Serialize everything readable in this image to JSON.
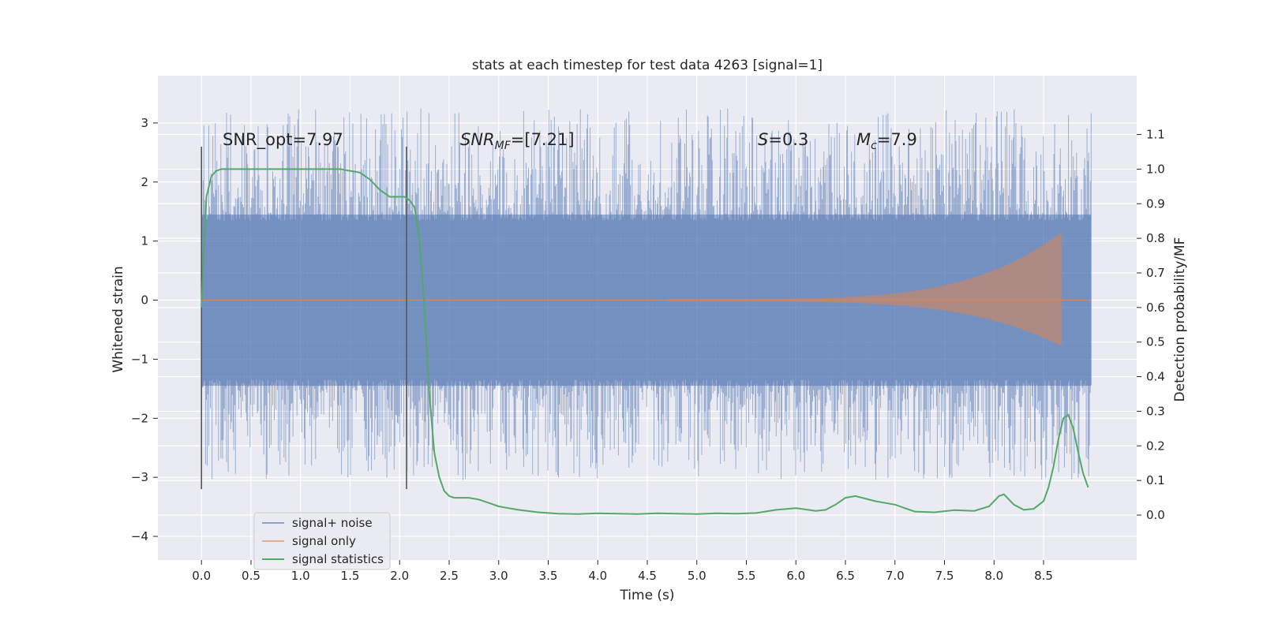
{
  "chart_data": {
    "type": "line",
    "title": "stats at each timestep for test data 4263 [signal=1]",
    "xlabel": "Time (s)",
    "ylabel": "Whitened strain",
    "ylabel_right": "Detection probability/MF",
    "xlim": [
      -0.44,
      9.44
    ],
    "ylim": [
      -4.4,
      3.8
    ],
    "ylim_right": [
      -0.13,
      1.27
    ],
    "x_ticks": [
      "0.0",
      "0.5",
      "1.0",
      "1.5",
      "2.0",
      "2.5",
      "3.0",
      "3.5",
      "4.0",
      "4.5",
      "5.0",
      "5.5",
      "6.0",
      "6.5",
      "7.0",
      "7.5",
      "8.0",
      "8.5"
    ],
    "y_ticks": [
      "3",
      "2",
      "1",
      "0",
      "−1",
      "−2",
      "−3",
      "−4"
    ],
    "y_tick_values": [
      3,
      2,
      1,
      0,
      -1,
      -2,
      -3,
      -4
    ],
    "y_right_ticks": [
      "1.1",
      "1.0",
      "0.9",
      "0.8",
      "0.7",
      "0.6",
      "0.5",
      "0.4",
      "0.3",
      "0.2",
      "0.1",
      "0.0"
    ],
    "y_right_tick_values": [
      1.1,
      1.0,
      0.9,
      0.8,
      0.7,
      0.6,
      0.5,
      0.4,
      0.3,
      0.2,
      0.1,
      0.0
    ],
    "grid": true,
    "legend_position": "lower-left",
    "annotations": {
      "snr_opt": "SNR_opt=7.97",
      "snr_mf_main": "SNR",
      "snr_mf_sub": "MF",
      "snr_mf_value": "=[7.21]",
      "s_symbol": "S",
      "s_value": "=0.3",
      "mc_symbol": "M",
      "mc_sub": "c",
      "mc_value": "=7.9"
    },
    "vertical_markers_x": [
      0.0,
      2.07
    ],
    "series": [
      {
        "name": "signal+ noise",
        "color": "#4c72b0",
        "band_hi": 1.45,
        "band_lo": -1.45,
        "x_start": 0.0,
        "x_end": 8.98
      },
      {
        "name": "signal only",
        "color": "#dd8452",
        "chirp_start": 4.7,
        "chirp_end": 8.68,
        "peak_hi": 1.15,
        "peak_lo": -0.78
      },
      {
        "name": "signal statistics",
        "color": "#55a868",
        "x": [
          0.0,
          0.05,
          0.1,
          0.15,
          0.2,
          0.3,
          0.5,
          0.8,
          1.0,
          1.2,
          1.4,
          1.5,
          1.6,
          1.65,
          1.7,
          1.75,
          1.8,
          1.85,
          1.9,
          1.95,
          2.0,
          2.05,
          2.1,
          2.15,
          2.2,
          2.25,
          2.3,
          2.35,
          2.4,
          2.45,
          2.5,
          2.55,
          2.6,
          2.7,
          2.8,
          2.9,
          3.0,
          3.2,
          3.4,
          3.6,
          3.8,
          4.0,
          4.2,
          4.4,
          4.6,
          4.8,
          5.0,
          5.2,
          5.4,
          5.6,
          5.8,
          6.0,
          6.2,
          6.3,
          6.4,
          6.5,
          6.6,
          6.8,
          7.0,
          7.2,
          7.4,
          7.6,
          7.8,
          7.95,
          8.05,
          8.1,
          8.2,
          8.3,
          8.4,
          8.5,
          8.55,
          8.6,
          8.65,
          8.7,
          8.75,
          8.8,
          8.85,
          8.9,
          8.95
        ],
        "y": [
          0.6,
          0.92,
          0.98,
          0.995,
          1.0,
          1.0,
          1.0,
          1.0,
          1.0,
          1.0,
          1.0,
          0.995,
          0.99,
          0.98,
          0.97,
          0.955,
          0.94,
          0.93,
          0.92,
          0.92,
          0.92,
          0.92,
          0.91,
          0.89,
          0.8,
          0.6,
          0.35,
          0.18,
          0.11,
          0.07,
          0.055,
          0.05,
          0.05,
          0.05,
          0.045,
          0.035,
          0.025,
          0.015,
          0.008,
          0.004,
          0.003,
          0.005,
          0.004,
          0.003,
          0.005,
          0.004,
          0.003,
          0.005,
          0.004,
          0.006,
          0.015,
          0.02,
          0.012,
          0.015,
          0.03,
          0.05,
          0.055,
          0.04,
          0.03,
          0.01,
          0.008,
          0.014,
          0.012,
          0.025,
          0.055,
          0.06,
          0.03,
          0.015,
          0.018,
          0.04,
          0.08,
          0.14,
          0.22,
          0.28,
          0.29,
          0.25,
          0.18,
          0.12,
          0.08
        ]
      }
    ]
  }
}
